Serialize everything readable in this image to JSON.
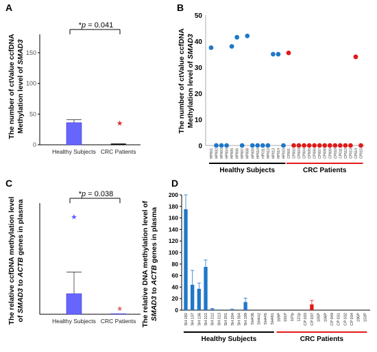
{
  "panels": {
    "A": {
      "letter": "A",
      "ylabel_line1": "The number of ctValue ccfDNA",
      "ylabel_line2_pre": "Methylation level of ",
      "ylabel_line2_gene": "SMAD3",
      "sig_pre": "*",
      "sig_italic": "p",
      "sig_post": " = 0.041"
    },
    "B": {
      "letter": "B",
      "ylabel_line1": "The number of ctValue ccfDNA",
      "ylabel_line2_pre": "Methylation level of ",
      "ylabel_line2_gene": "SMAD3"
    },
    "C": {
      "letter": "C",
      "ylabel_line1": "The relative ccfDNA methylation level",
      "ylabel_line2_pre": "of ",
      "ylabel_line2_gene1": "SMAD3",
      "ylabel_line2_mid": " to ",
      "ylabel_line2_gene2": "ACTB",
      "ylabel_line2_post": " genes in plasma",
      "sig_pre": "*",
      "sig_italic": "p",
      "sig_post": " = 0.038"
    },
    "D": {
      "letter": "D",
      "ylabel_line1": "The relative DNA methylation level of",
      "ylabel_line2_gene1": "SMAD3",
      "ylabel_line2_mid": " to ",
      "ylabel_line2_gene2": "ACTB",
      "ylabel_line2_post": " genes in plasma"
    }
  },
  "chart_data": [
    {
      "panel": "A",
      "type": "bar",
      "categories": [
        "Healthy Subjects",
        "CRC Patients"
      ],
      "values": [
        36,
        0
      ],
      "errors": [
        5,
        0
      ],
      "outliers": [
        null,
        35
      ],
      "yticks": [
        0,
        50,
        100,
        150
      ],
      "ylim": [
        0,
        180
      ],
      "colors": {
        "bar": "#6666ff",
        "outlier_crc": "#e0303a"
      }
    },
    {
      "panel": "B",
      "type": "scatter",
      "groups": [
        "Healthy Subjects",
        "CRC Patients"
      ],
      "x": [
        "HP001",
        "HP002",
        "HP003",
        "HP004",
        "HP005",
        "HP006",
        "HP007",
        "HP008",
        "HP009",
        "HP010",
        "HP011",
        "HP012",
        "HP013",
        "HP014",
        "HP015",
        "CP001",
        "CP002",
        "CP003",
        "CP004",
        "CP005",
        "CP006",
        "CP007",
        "CP008",
        "CP009",
        "CP010",
        "CP011",
        "CP012",
        "CP013",
        "CP014",
        "CP015"
      ],
      "y": [
        37.5,
        0,
        0,
        0,
        38,
        41.5,
        0,
        42,
        0,
        0,
        0,
        0,
        35,
        35,
        0,
        35.5,
        0,
        0,
        0,
        0,
        0,
        0,
        0,
        0,
        0,
        0,
        0,
        0,
        34,
        0
      ],
      "yticks": [
        0,
        10,
        20,
        30,
        40,
        50
      ],
      "ylim": [
        0,
        50
      ],
      "colors": {
        "healthy": "#1f77c8",
        "crc": "#e01a1a",
        "healthy_group_line": "#000000",
        "crc_group_line": "#e01a1a"
      }
    },
    {
      "panel": "C",
      "type": "bar",
      "categories": [
        "Healthy Subjects",
        "CRC Patients"
      ],
      "values": [
        37,
        1
      ],
      "errors": [
        39,
        0
      ],
      "outliers": [
        175,
        10
      ],
      "yticks": [],
      "ylim": [
        0,
        200
      ],
      "colors": {
        "bar": "#6666ff",
        "outlier_healthy": "#6666ff",
        "outlier_crc": "#e07070"
      }
    },
    {
      "panel": "D",
      "type": "bar",
      "groups": [
        "Healthy Subjects",
        "CRC Patients"
      ],
      "categories": [
        "SH 182",
        "SH 137",
        "SH 136",
        "SH 221",
        "SH 212",
        "SH 213",
        "SH 201",
        "SH 204",
        "SH 304",
        "SH 199",
        "SH436",
        "SH442",
        "SH445",
        "SH461",
        "169P",
        "191P",
        "107p",
        "121p",
        "CP 033",
        "CP 037",
        "105P",
        "106P",
        "CP 049",
        "CP 031",
        "CP 032",
        "CP 034",
        "190P",
        "153P"
      ],
      "values": [
        175,
        44,
        37,
        75,
        2,
        1,
        0,
        1,
        0,
        14,
        0,
        0,
        0,
        0,
        0,
        0,
        0,
        0,
        0,
        10,
        0,
        0,
        0,
        0,
        0,
        0,
        0,
        0
      ],
      "errors": [
        25,
        25,
        10,
        12,
        1,
        0,
        0,
        1,
        0,
        7,
        0,
        0,
        0,
        0,
        0,
        0,
        0,
        0,
        0,
        7,
        0,
        0,
        0,
        0,
        0,
        0,
        0,
        0
      ],
      "yticks": [
        0,
        20,
        40,
        60,
        80,
        100,
        120,
        140,
        160,
        180,
        200
      ],
      "ylim": [
        0,
        200
      ],
      "colors": {
        "healthy": "#1f77c8",
        "crc": "#e01a1a",
        "healthy_group_line": "#000000",
        "crc_group_line": "#e01a1a"
      }
    }
  ]
}
